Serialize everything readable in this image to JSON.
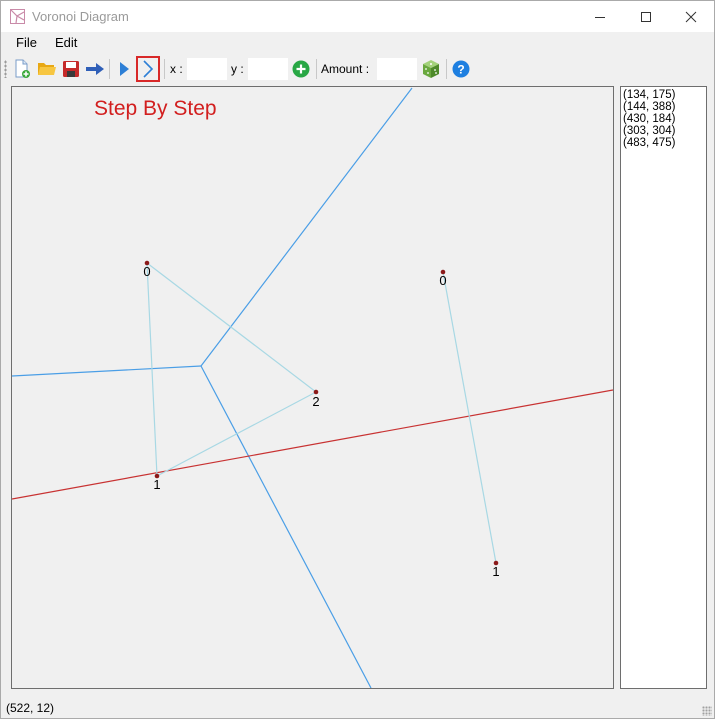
{
  "window": {
    "title": "Voronoi Diagram",
    "icon": "voronoi-app-icon"
  },
  "menu": {
    "items": [
      {
        "label": "File"
      },
      {
        "label": "Edit"
      }
    ]
  },
  "toolbar": {
    "x_label": "x :",
    "y_label": "y :",
    "x_value": "",
    "y_value": "",
    "amount_label": "Amount :",
    "amount_value": "",
    "icons": [
      "new-file-icon",
      "open-folder-icon",
      "save-icon",
      "arrow-right-icon",
      "play-icon",
      "step-next-icon",
      "add-point-icon",
      "random-dice-icon",
      "help-icon"
    ]
  },
  "canvas": {
    "mode_title": "Step By Step",
    "colors": {
      "voronoi_edge": "#4a9ee6",
      "sweep_line": "#c83232",
      "triangulation": "#a8d8e4",
      "site": "#8b1a1a"
    },
    "sites": [
      {
        "label": "0",
        "group": "left"
      },
      {
        "label": "1",
        "group": "left"
      },
      {
        "label": "2",
        "group": "left"
      },
      {
        "label": "0",
        "group": "right"
      },
      {
        "label": "1",
        "group": "right"
      }
    ]
  },
  "points": {
    "items": [
      "(134, 175)",
      "(144, 388)",
      "(430, 184)",
      "(303, 304)",
      "(483, 475)"
    ]
  },
  "status": {
    "coordinates": "(522, 12)"
  }
}
